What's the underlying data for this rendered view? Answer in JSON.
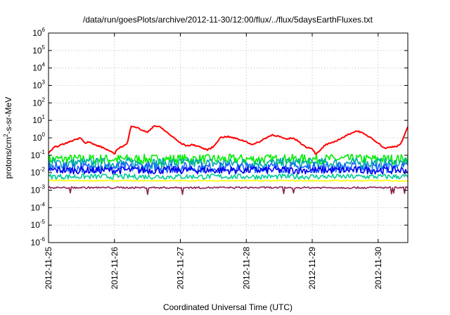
{
  "chart_data": {
    "type": "line",
    "title": "/data/run/goesPlots/archive/2012-11-30/12:00/flux/../flux/5daysEarthFluxes.txt",
    "xlabel": "Coordinated Universal Time (UTC)",
    "ylabel_base": "protons/cm",
    "ylabel_sup": "2",
    "ylabel_rest": "-s-sr-MeV",
    "y_scale": "log",
    "ylim_exp": [
      -6,
      6
    ],
    "y_tick_exponents": [
      -6,
      -5,
      -4,
      -3,
      -2,
      -1,
      0,
      1,
      2,
      3,
      4,
      5,
      6
    ],
    "y_tick_base": "10",
    "x_ticks": [
      "2012-11-25",
      "2012-11-26",
      "2012-11-27",
      "2012-11-28",
      "2012-11-29",
      "2012-11-30"
    ],
    "xlim_days": [
      0,
      5.45
    ],
    "grid": true,
    "legend": "none",
    "series": [
      {
        "color": "#ff0000",
        "x": [
          0.0,
          0.1,
          0.2,
          0.3,
          0.4,
          0.5,
          0.55,
          0.6,
          0.7,
          0.8,
          0.9,
          0.95,
          1.0,
          1.05,
          1.1,
          1.15,
          1.2,
          1.25,
          1.3,
          1.4,
          1.5,
          1.6,
          1.7,
          1.8,
          1.9,
          2.0,
          2.1,
          2.2,
          2.3,
          2.4,
          2.5,
          2.6,
          2.7,
          2.8,
          2.9,
          3.0,
          3.1,
          3.2,
          3.3,
          3.4,
          3.5,
          3.6,
          3.7,
          3.8,
          3.9,
          4.0,
          4.05,
          4.1,
          4.15,
          4.2,
          4.3,
          4.4,
          4.5,
          4.6,
          4.7,
          4.8,
          4.9,
          5.0,
          5.1,
          5.2,
          5.3,
          5.35,
          5.4,
          5.45
        ],
        "y": [
          0.13,
          0.3,
          0.4,
          0.55,
          0.8,
          1.0,
          0.5,
          0.6,
          0.4,
          0.3,
          0.2,
          0.15,
          0.12,
          0.25,
          0.3,
          0.35,
          0.5,
          5.0,
          4.5,
          3.0,
          2.0,
          5.0,
          4.0,
          2.0,
          1.0,
          0.5,
          0.35,
          0.4,
          0.3,
          0.2,
          0.3,
          1.0,
          1.2,
          1.0,
          0.8,
          0.6,
          0.4,
          0.6,
          1.0,
          1.5,
          1.2,
          0.8,
          1.0,
          0.6,
          0.3,
          0.25,
          0.12,
          0.15,
          0.25,
          0.4,
          0.5,
          0.8,
          1.2,
          2.0,
          2.5,
          1.5,
          1.0,
          0.5,
          0.25,
          0.3,
          0.35,
          0.5,
          1.5,
          4.0
        ]
      },
      {
        "color": "#00ee00",
        "x": [
          0,
          5.45
        ],
        "y": [
          0.06,
          0.06
        ],
        "noise": 0.28
      },
      {
        "color": "#00aaaa",
        "x": [
          0,
          5.45
        ],
        "y": [
          0.035,
          0.035
        ],
        "noise": 0.3
      },
      {
        "color": "#1a66ff",
        "x": [
          0,
          5.45
        ],
        "y": [
          0.02,
          0.02
        ],
        "noise": 0.3
      },
      {
        "color": "#0000ee",
        "x": [
          0,
          5.45
        ],
        "y": [
          0.014,
          0.014
        ],
        "noise": 0.22
      },
      {
        "color": "#00cc99",
        "x": [
          0,
          5.45
        ],
        "y": [
          0.006,
          0.006
        ],
        "noise": 0.15
      },
      {
        "color": "#ffff00",
        "x": [
          0,
          5.45
        ],
        "y": [
          0.0035,
          0.0035
        ],
        "noise": 0.04
      },
      {
        "color": "#8b2252",
        "x": [
          0,
          5.45
        ],
        "y": [
          0.0014,
          0.0014
        ],
        "noise": 0.05,
        "dips": true
      }
    ]
  }
}
